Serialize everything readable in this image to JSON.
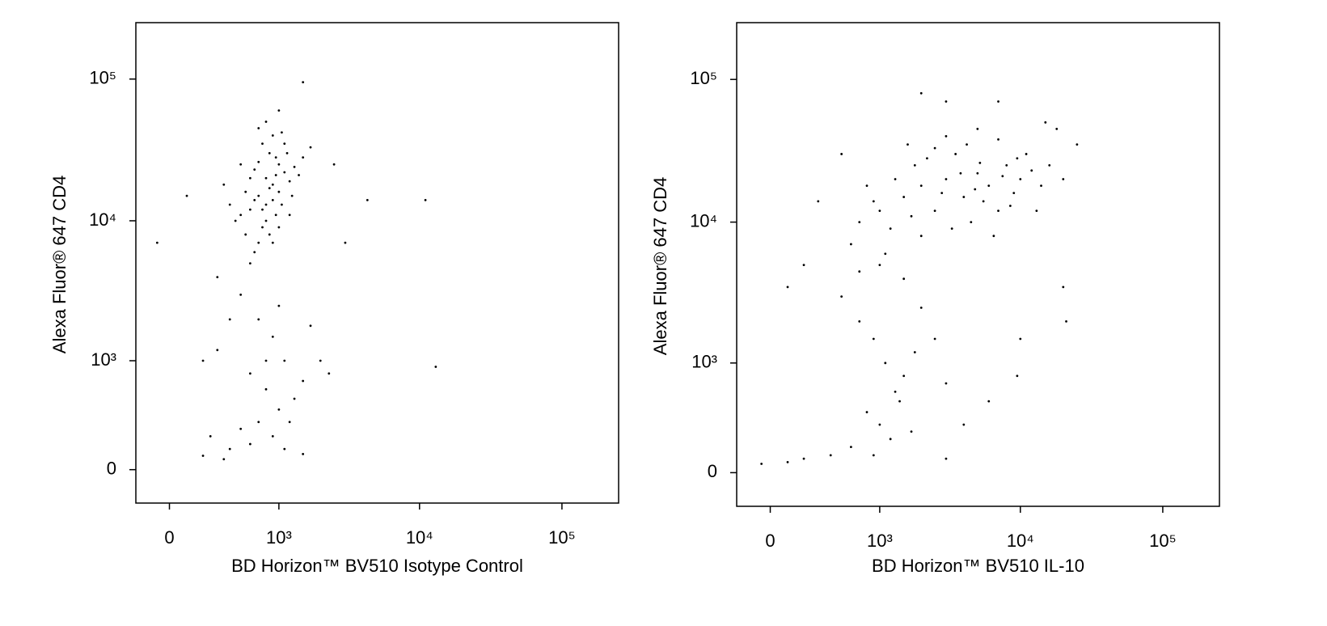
{
  "chart_data": [
    {
      "type": "scatter",
      "xlabel": "BD Horizon™ BV510 Isotype Control",
      "ylabel": "Alexa Fluor® 647 CD4",
      "color": "#000000",
      "xscale": "biexponential",
      "yscale": "biexponential",
      "xlim": [
        -200,
        250000
      ],
      "ylim": [
        -200,
        250000
      ],
      "xticks": [
        0,
        {
          "value": 1000,
          "label": "10³"
        },
        {
          "value": 10000,
          "label": "10⁴"
        },
        {
          "value": 100000,
          "label": "10⁵"
        }
      ],
      "yticks": [
        0,
        {
          "value": 1000,
          "label": "10³"
        },
        {
          "value": 10000,
          "label": "10⁴"
        },
        {
          "value": 100000,
          "label": "10⁵"
        }
      ],
      "x": [
        600,
        700,
        800,
        900,
        1000,
        750,
        650,
        850,
        950,
        1100,
        550,
        700,
        800,
        900,
        1000,
        1200,
        600,
        500,
        700,
        850,
        950,
        1050,
        1300,
        750,
        650,
        800,
        900,
        1000,
        1150,
        550,
        450,
        700,
        1250,
        1400,
        400,
        600,
        900,
        800,
        1100,
        1000,
        1500,
        1700,
        350,
        750,
        850,
        1200,
        650,
        950,
        1050,
        500,
        2500,
        4300,
        3000,
        11000,
        13000,
        -70,
        1500,
        100,
        500,
        700,
        900,
        1100,
        600,
        800,
        1000,
        1200,
        400,
        300,
        700,
        900,
        500,
        1300,
        1500,
        600,
        400,
        200,
        800,
        1000,
        2000,
        2300,
        1100,
        250,
        350,
        1500,
        1700,
        300,
        200
      ],
      "values": [
        12000,
        15000,
        20000,
        18000,
        25000,
        9000,
        14000,
        30000,
        11000,
        22000,
        8000,
        26000,
        13000,
        40000,
        16000,
        19000,
        20000,
        11000,
        7000,
        17000,
        28000,
        13000,
        24000,
        35000,
        6000,
        10000,
        14000,
        9000,
        30000,
        16000,
        10000,
        45000,
        15000,
        21000,
        13000,
        5000,
        7000,
        50000,
        35000,
        60000,
        28000,
        33000,
        18000,
        12000,
        8000,
        11000,
        23000,
        21000,
        42000,
        25000,
        25000,
        14000,
        7000,
        14000,
        900,
        7000,
        95000,
        15000,
        3000,
        2000,
        1500,
        1000,
        800,
        600,
        400,
        300,
        2000,
        1200,
        300,
        200,
        250,
        500,
        700,
        150,
        120,
        80,
        1000,
        2500,
        1000,
        800,
        120,
        200,
        60,
        90,
        1800,
        4000,
        1000
      ]
    },
    {
      "type": "scatter",
      "xlabel": "BD Horizon™ BV510 IL-10",
      "ylabel": "Alexa Fluor® 647 CD4",
      "color": "#000000",
      "xscale": "biexponential",
      "yscale": "biexponential",
      "xlim": [
        -200,
        250000
      ],
      "ylim": [
        -200,
        250000
      ],
      "xticks": [
        0,
        {
          "value": 1000,
          "label": "10³"
        },
        {
          "value": 10000,
          "label": "10⁴"
        },
        {
          "value": 100000,
          "label": "10⁵"
        }
      ],
      "yticks": [
        0,
        {
          "value": 1000,
          "label": "10³"
        },
        {
          "value": 10000,
          "label": "10⁴"
        },
        {
          "value": 100000,
          "label": "10⁵"
        }
      ],
      "x": [
        1000,
        1500,
        2000,
        3000,
        4000,
        5000,
        6000,
        8000,
        10000,
        12000,
        1200,
        1800,
        2500,
        3500,
        4500,
        5500,
        7000,
        9000,
        11000,
        14000,
        900,
        1300,
        1700,
        2200,
        2800,
        3300,
        3800,
        4200,
        4800,
        5200,
        6500,
        7500,
        8500,
        9500,
        13000,
        16000,
        20000,
        25000,
        18000,
        15000,
        700,
        600,
        800,
        1100,
        2000,
        3000,
        5000,
        7000,
        2500,
        1600,
        2000,
        3000,
        7000,
        20000,
        21000,
        200,
        100,
        300,
        500,
        9500,
        6000,
        4000,
        10000,
        500,
        700,
        900,
        1100,
        1300,
        800,
        1000,
        1200,
        600,
        400,
        200,
        1500,
        1800,
        2000,
        1400,
        2500,
        3000,
        1000,
        1500,
        700,
        100,
        -50,
        1700,
        900,
        3000
      ],
      "values": [
        12000,
        15000,
        18000,
        20000,
        15000,
        22000,
        18000,
        25000,
        20000,
        23000,
        9000,
        25000,
        12000,
        30000,
        10000,
        14000,
        12000,
        16000,
        30000,
        18000,
        14000,
        20000,
        11000,
        28000,
        16000,
        9000,
        22000,
        35000,
        17000,
        26000,
        8000,
        21000,
        13000,
        28000,
        12000,
        25000,
        20000,
        35000,
        45000,
        50000,
        10000,
        7000,
        18000,
        6000,
        8000,
        40000,
        45000,
        38000,
        33000,
        35000,
        80000,
        70000,
        70000,
        3500,
        2000,
        5000,
        3500,
        14000,
        30000,
        800,
        500,
        300,
        1500,
        3000,
        2000,
        1500,
        1000,
        600,
        400,
        300,
        200,
        150,
        100,
        80,
        800,
        1200,
        2500,
        500,
        1500,
        700,
        5000,
        4000,
        4500,
        60,
        50,
        250,
        100,
        80
      ]
    }
  ]
}
